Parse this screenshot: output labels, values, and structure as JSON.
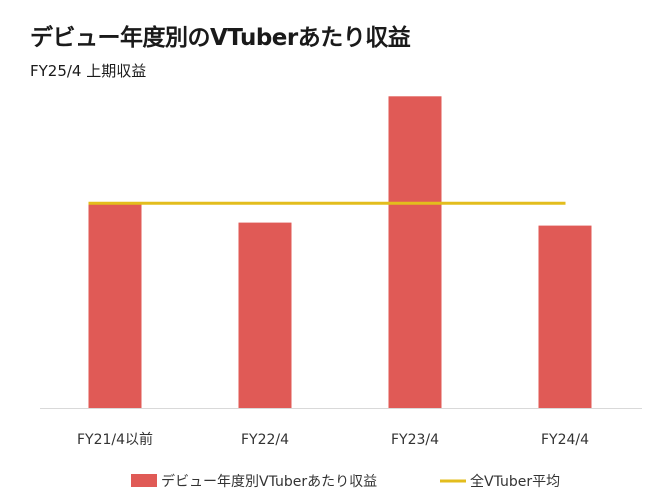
{
  "chart_data": {
    "type": "bar",
    "title": "デビュー年度別のVTuberあたり収益",
    "subtitle": "FY25/4 上期収益",
    "categories": [
      "FY21/4以前",
      "FY22/4",
      "FY23/4",
      "FY24/4"
    ],
    "series": [
      {
        "name": "デビュー年度別VTuberあたり収益",
        "type": "bar",
        "color": "#e05a56",
        "values": [
          100,
          91,
          153,
          89.5
        ]
      },
      {
        "name": "全VTuber平均",
        "type": "line",
        "color": "#e3bd1d",
        "values": [
          100.5,
          100.5,
          100.5,
          100.5
        ]
      }
    ],
    "ylim": [
      0,
      160
    ],
    "grid": false,
    "legend": "bottom"
  }
}
